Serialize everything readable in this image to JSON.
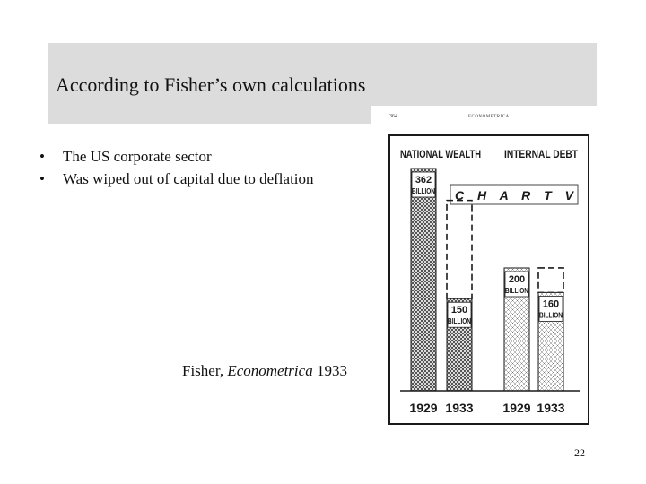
{
  "slide": {
    "title": "According to Fisher’s own calculations",
    "bullets": [
      "The US corporate sector",
      "Was wiped out of capital due to deflation"
    ],
    "bullet_glyph": "•",
    "caption": {
      "author": "Fisher,",
      "journal": "Econometrica",
      "year": "1933"
    },
    "slide_number": "22"
  },
  "scan": {
    "page_number": "364",
    "journal_header": "ECONOMETRICA",
    "chart_title": "C H A R T   V",
    "group_headers": [
      "NATIONAL WEALTH",
      "INTERNAL DEBT"
    ],
    "bars": [
      {
        "group": "NATIONAL WEALTH",
        "year": "1929",
        "value": 362,
        "label_value": "362",
        "label_unit": "BILLION",
        "pattern": "dense"
      },
      {
        "group": "NATIONAL WEALTH",
        "year": "1933",
        "value": 150,
        "label_value": "150",
        "label_unit": "BILLION",
        "pattern": "dense"
      },
      {
        "group": "INTERNAL DEBT",
        "year": "1929",
        "value": 200,
        "label_value": "200",
        "label_unit": "BILLION",
        "pattern": "light"
      },
      {
        "group": "INTERNAL DEBT",
        "year": "1933",
        "value": 160,
        "label_value": "160",
        "label_unit": "BILLION",
        "pattern": "light"
      }
    ],
    "colors": {
      "ink": "#1a1a1a",
      "title_band": "#dcdcdc"
    }
  }
}
